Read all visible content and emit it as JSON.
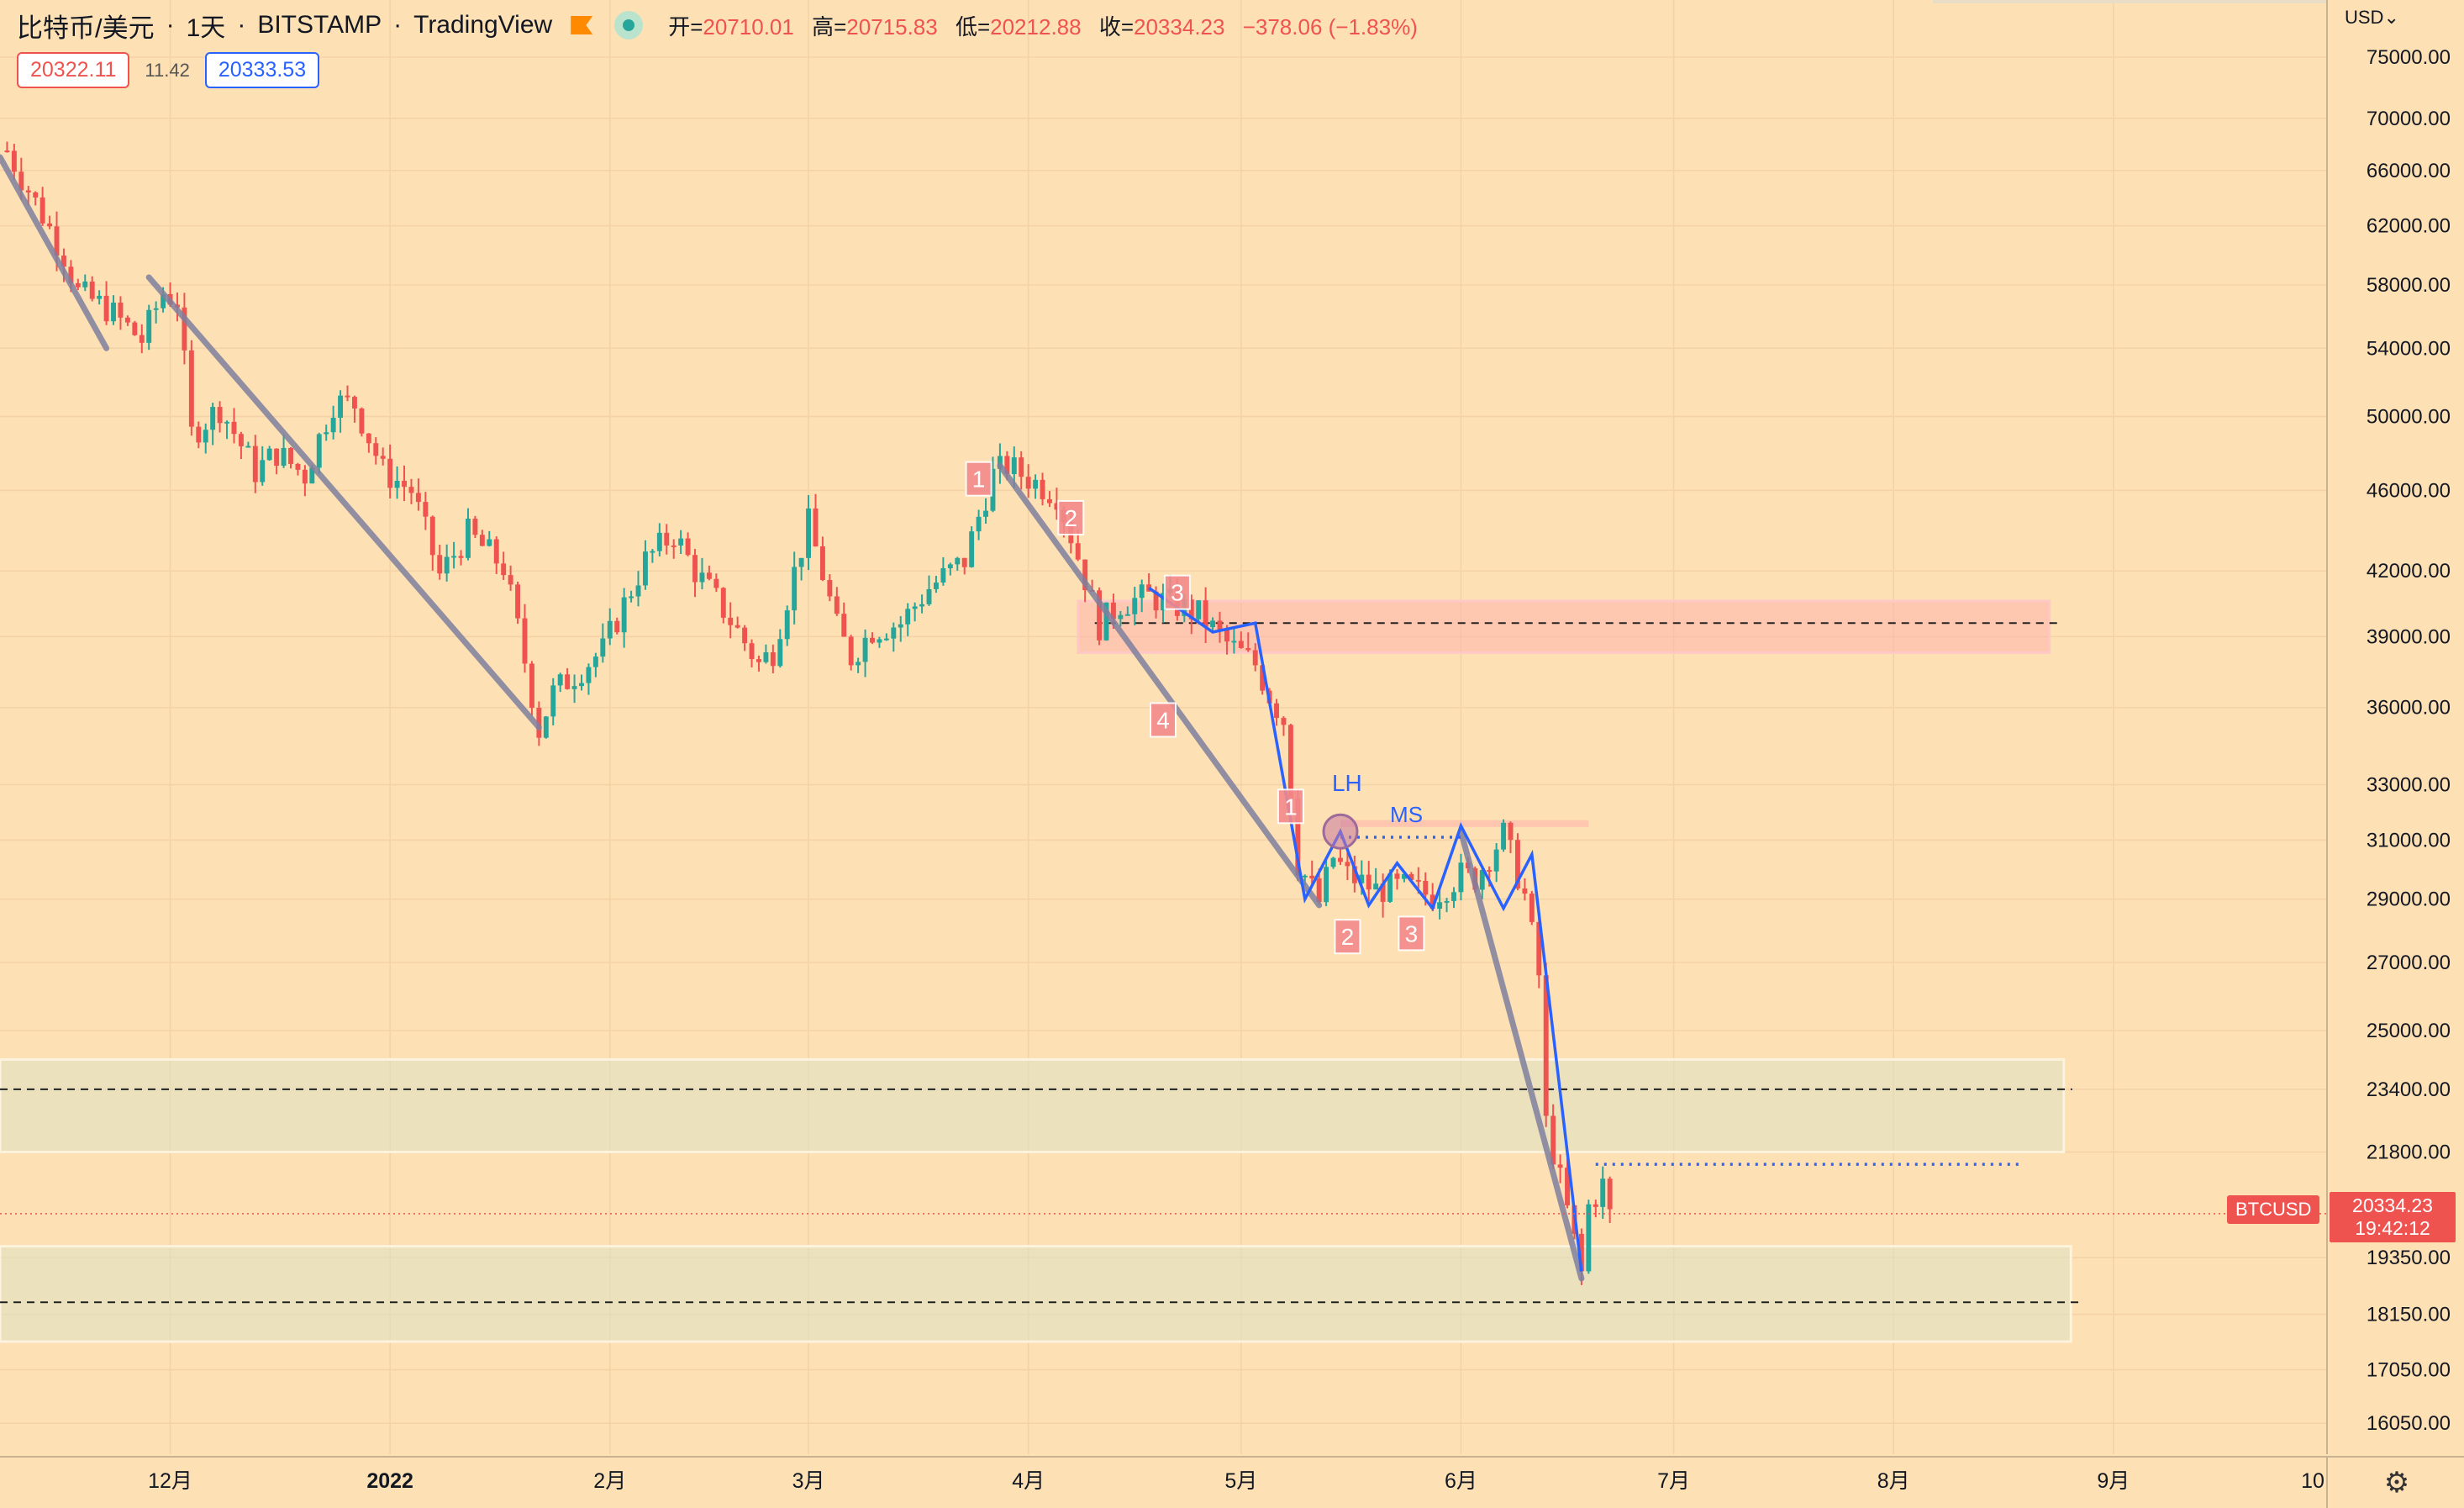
{
  "header": {
    "symbol": "比特币/美元",
    "interval": "1天",
    "exchange": "BITSTAMP",
    "platform": "TradingView",
    "ohlc": {
      "open_label": "开=",
      "open": "20710.01",
      "high_label": "高=",
      "high": "20715.83",
      "low_label": "低=",
      "low": "20212.88",
      "close_label": "收=",
      "close": "20334.23",
      "change": "−378.06 (−1.83%)"
    }
  },
  "quote": {
    "bid": "20322.11",
    "spread": "11.42",
    "ask": "20333.53"
  },
  "axis": {
    "currency": "USD",
    "price_labels": [
      "75000.00",
      "70000.00",
      "66000.00",
      "62000.00",
      "58000.00",
      "54000.00",
      "50000.00",
      "46000.00",
      "42000.00",
      "39000.00",
      "36000.00",
      "33000.00",
      "31000.00",
      "29000.00",
      "27000.00",
      "25000.00",
      "23400.00",
      "21800.00",
      "19350.00",
      "18150.00",
      "17050.00",
      "16050.00"
    ],
    "time_labels": [
      "12月",
      "2022",
      "2月",
      "3月",
      "4月",
      "5月",
      "6月",
      "7月",
      "8月",
      "9月",
      "10"
    ],
    "settings_icon": "gear-icon"
  },
  "last_price": {
    "symbol": "BTCUSD",
    "price": "20334.23",
    "countdown": "19:42:12"
  },
  "annotations": {
    "wave_a": [
      "1",
      "2",
      "3",
      "4"
    ],
    "wave_b": [
      "1",
      "2",
      "3"
    ],
    "lh": "LH",
    "ms": "MS"
  },
  "colors": {
    "up": "#26a69a",
    "down": "#ef5350",
    "background": "#fde0b4",
    "trendline": "#7f7f9e",
    "blue": "#2962ff"
  },
  "chart_data": {
    "type": "candlestick",
    "y_scale": "log",
    "ylim": [
      15500,
      80000
    ],
    "x_range": [
      "2021-11-07",
      "2022-10-01"
    ],
    "series": [
      {
        "name": "BTCUSD",
        "anchors": [
          [
            "2021-11-08",
            67500
          ],
          [
            "2021-11-10",
            65500
          ],
          [
            "2021-11-16",
            60000
          ],
          [
            "2021-11-18",
            57500
          ],
          [
            "2021-11-22",
            56500
          ],
          [
            "2021-11-27",
            54500
          ],
          [
            "2021-11-30",
            57500
          ],
          [
            "2021-12-02",
            57000
          ],
          [
            "2021-12-04",
            49000
          ],
          [
            "2021-12-08",
            50500
          ],
          [
            "2021-12-13",
            47000
          ],
          [
            "2021-12-16",
            48000
          ],
          [
            "2021-12-20",
            46800
          ],
          [
            "2021-12-24",
            50800
          ],
          [
            "2021-12-27",
            50700
          ],
          [
            "2021-12-31",
            47000
          ],
          [
            "2022-01-04",
            46000
          ],
          [
            "2022-01-08",
            41800
          ],
          [
            "2022-01-12",
            43800
          ],
          [
            "2022-01-17",
            42200
          ],
          [
            "2022-01-22",
            35100
          ],
          [
            "2022-01-24",
            36600
          ],
          [
            "2022-01-31",
            38400
          ],
          [
            "2022-02-06",
            42500
          ],
          [
            "2022-02-10",
            43800
          ],
          [
            "2022-02-13",
            42000
          ],
          [
            "2022-02-17",
            40200
          ],
          [
            "2022-02-22",
            37800
          ],
          [
            "2022-02-24",
            38400
          ],
          [
            "2022-03-01",
            44300
          ],
          [
            "2022-03-05",
            39400
          ],
          [
            "2022-03-07",
            38100
          ],
          [
            "2022-03-10",
            39300
          ],
          [
            "2022-03-14",
            39600
          ],
          [
            "2022-03-18",
            41200
          ],
          [
            "2022-03-23",
            42500
          ],
          [
            "2022-03-27",
            46800
          ],
          [
            "2022-03-29",
            47300
          ],
          [
            "2022-04-02",
            46400
          ],
          [
            "2022-04-05",
            45800
          ],
          [
            "2022-04-08",
            42700
          ],
          [
            "2022-04-11",
            39500
          ],
          [
            "2022-04-14",
            40500
          ],
          [
            "2022-04-18",
            40800
          ],
          [
            "2022-04-21",
            40500
          ],
          [
            "2022-04-25",
            40000
          ],
          [
            "2022-04-29",
            38700
          ],
          [
            "2022-05-03",
            37800
          ],
          [
            "2022-05-05",
            36500
          ],
          [
            "2022-05-07",
            35500
          ],
          [
            "2022-05-09",
            30200
          ],
          [
            "2022-05-12",
            28900
          ],
          [
            "2022-05-14",
            30400
          ],
          [
            "2022-05-16",
            29800
          ],
          [
            "2022-05-20",
            29300
          ],
          [
            "2022-05-24",
            29400
          ],
          [
            "2022-05-28",
            29100
          ],
          [
            "2022-06-01",
            29800
          ],
          [
            "2022-06-03",
            29700
          ],
          [
            "2022-06-07",
            31200
          ],
          [
            "2022-06-10",
            29100
          ],
          [
            "2022-06-12",
            26600
          ],
          [
            "2022-06-13",
            22500
          ],
          [
            "2022-06-16",
            20400
          ],
          [
            "2022-06-18",
            19000
          ],
          [
            "2022-06-19",
            20500
          ],
          [
            "2022-06-21",
            21000
          ],
          [
            "2022-06-22",
            20300
          ]
        ]
      }
    ],
    "zones": [
      {
        "from": "2022-04-08",
        "to": "2022-08-23",
        "low": 38300,
        "high": 40600,
        "mid": 39600
      },
      {
        "from": "2021-11-07",
        "to": "2022-08-25",
        "low": 21800,
        "high": 24200,
        "mid": 23400
      },
      {
        "from": "2021-11-07",
        "to": "2022-08-26",
        "low": 17600,
        "high": 19600,
        "mid": 18400
      }
    ],
    "trendlines": [
      [
        [
          "2021-11-07",
          67000
        ],
        [
          "2021-11-22",
          54000
        ]
      ],
      [
        [
          "2021-11-28",
          58500
        ],
        [
          "2022-01-22",
          35200
        ]
      ],
      [
        [
          "2022-03-28",
          47300
        ],
        [
          "2022-05-12",
          28800
        ]
      ],
      [
        [
          "2022-06-01",
          31300
        ],
        [
          "2022-06-18",
          18900
        ]
      ]
    ],
    "blue_lines": [
      [
        [
          "2022-04-18",
          41200
        ],
        [
          "2022-04-27",
          39200
        ],
        [
          "2022-05-03",
          39600
        ],
        [
          "2022-05-10",
          29000
        ],
        [
          "2022-05-15",
          31300
        ],
        [
          "2022-05-19",
          28800
        ],
        [
          "2022-05-23",
          30200
        ],
        [
          "2022-05-28",
          28700
        ],
        [
          "2022-06-01",
          31500
        ],
        [
          "2022-06-07",
          28700
        ],
        [
          "2022-06-11",
          30500
        ],
        [
          "2022-06-18",
          19050
        ]
      ]
    ],
    "ms_level": {
      "from": "2022-05-15",
      "to": "2022-06-01",
      "value": 31100
    },
    "target_level": {
      "from": "2022-06-20",
      "to": "2022-08-19",
      "value": 21500
    },
    "last_price_value": 20334.23
  }
}
